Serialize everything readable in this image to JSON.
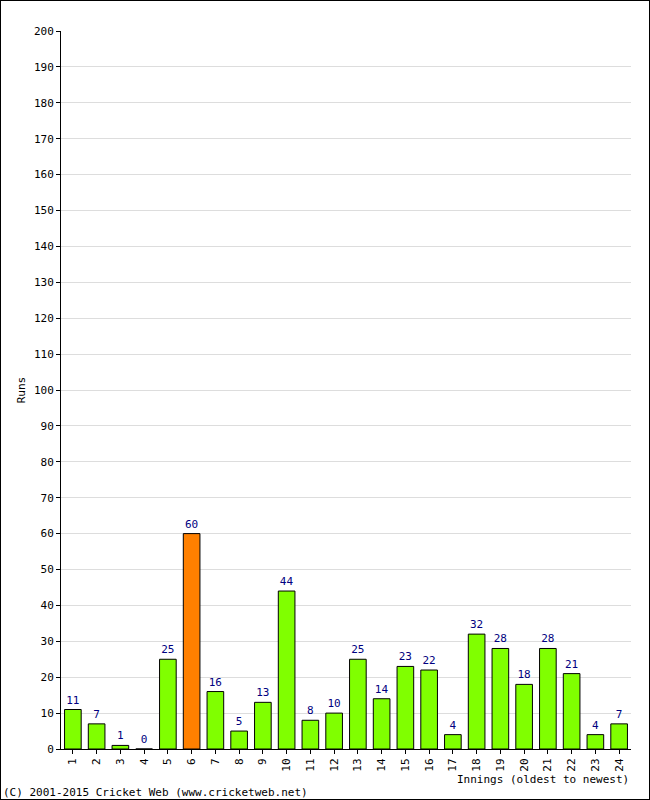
{
  "chart_data": {
    "type": "bar",
    "categories": [
      "1",
      "2",
      "3",
      "4",
      "5",
      "6",
      "7",
      "8",
      "9",
      "10",
      "11",
      "12",
      "13",
      "14",
      "15",
      "16",
      "17",
      "18",
      "19",
      "20",
      "21",
      "22",
      "23",
      "24"
    ],
    "values": [
      11,
      7,
      1,
      0,
      25,
      60,
      16,
      5,
      13,
      44,
      8,
      10,
      25,
      14,
      23,
      22,
      4,
      32,
      28,
      18,
      28,
      21,
      4,
      7
    ],
    "colors": [
      "#80ff00",
      "#80ff00",
      "#80ff00",
      "#80ff00",
      "#80ff00",
      "#ff8000",
      "#80ff00",
      "#80ff00",
      "#80ff00",
      "#80ff00",
      "#80ff00",
      "#80ff00",
      "#80ff00",
      "#80ff00",
      "#80ff00",
      "#80ff00",
      "#80ff00",
      "#80ff00",
      "#80ff00",
      "#80ff00",
      "#80ff00",
      "#80ff00",
      "#80ff00",
      "#80ff00"
    ],
    "x_label": "Innings (oldest to newest)",
    "y_label": "Runs",
    "ylim": [
      0,
      200
    ],
    "yticks": [
      0,
      10,
      20,
      30,
      40,
      50,
      60,
      70,
      80,
      90,
      100,
      110,
      120,
      130,
      140,
      150,
      160,
      170,
      180,
      190,
      200
    ],
    "grid": true,
    "data_labels": true,
    "annotations": [
      "(C) 2001-2015 Cricket Web (www.cricketweb.net)"
    ]
  }
}
